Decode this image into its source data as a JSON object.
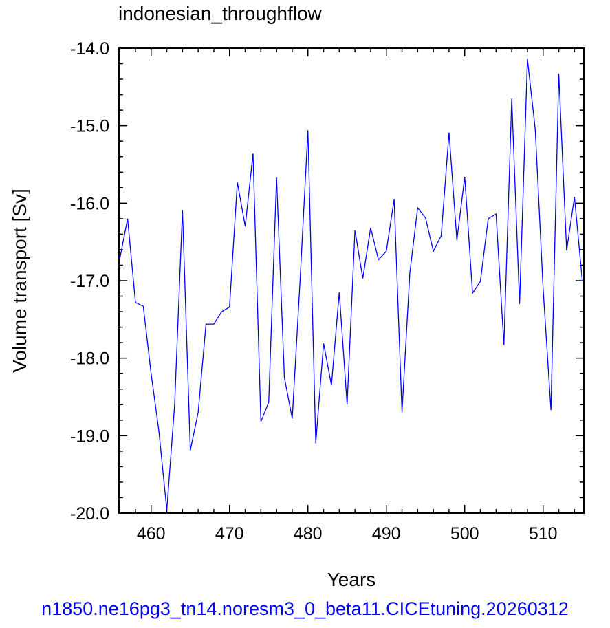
{
  "chart_data": {
    "type": "line",
    "title": "indonesian_throughflow",
    "xlabel": "Years",
    "ylabel": "Volume transport [Sv]",
    "xlim": [
      455.9,
      515.2
    ],
    "ylim": [
      -20.0,
      -14.0
    ],
    "x_ticks": [
      460,
      470,
      480,
      490,
      500,
      510
    ],
    "x_tick_labels": [
      "460",
      "470",
      "480",
      "490",
      "500",
      "510"
    ],
    "y_ticks": [
      -20.0,
      -19.0,
      -18.0,
      -17.0,
      -16.0,
      -15.0,
      -14.0
    ],
    "y_tick_labels": [
      "-20.0",
      "-19.0",
      "-18.0",
      "-17.0",
      "-16.0",
      "-15.0",
      "-14.0"
    ],
    "grid": false,
    "line_color": "#0000ff",
    "series": [
      {
        "x": [
          456,
          457,
          458,
          459,
          460,
          461,
          462,
          463,
          464,
          465,
          466,
          467,
          468,
          469,
          470,
          471,
          472,
          473,
          474,
          475,
          476,
          477,
          478,
          479,
          480,
          481,
          482,
          483,
          484,
          485,
          486,
          487,
          488,
          489,
          490,
          491,
          492,
          493,
          494,
          495,
          496,
          497,
          498,
          499,
          500,
          501,
          502,
          503,
          504,
          505,
          506,
          507,
          508,
          509,
          510,
          511,
          512,
          513,
          514,
          515
        ],
        "values": [
          -16.72,
          -16.2,
          -17.28,
          -17.33,
          -18.2,
          -18.95,
          -19.96,
          -18.6,
          -16.09,
          -19.19,
          -18.7,
          -17.56,
          -17.56,
          -17.4,
          -17.34,
          -15.73,
          -16.3,
          -15.36,
          -18.82,
          -18.57,
          -15.67,
          -18.25,
          -18.78,
          -17.0,
          -15.06,
          -19.1,
          -17.81,
          -18.35,
          -17.15,
          -18.6,
          -16.35,
          -16.97,
          -16.32,
          -16.73,
          -16.62,
          -15.95,
          -18.7,
          -16.9,
          -16.06,
          -16.19,
          -16.62,
          -16.42,
          -15.09,
          -16.48,
          -15.66,
          -17.16,
          -17.01,
          -16.2,
          -16.14,
          -17.83,
          -14.65,
          -17.3,
          -14.14,
          -15.05,
          -17.1,
          -18.67,
          -14.33,
          -16.61,
          -15.92,
          -17.0
        ]
      }
    ]
  },
  "caption": "n1850.ne16pg3_tn14.noresm3_0_beta11.CICEtuning.20260312"
}
